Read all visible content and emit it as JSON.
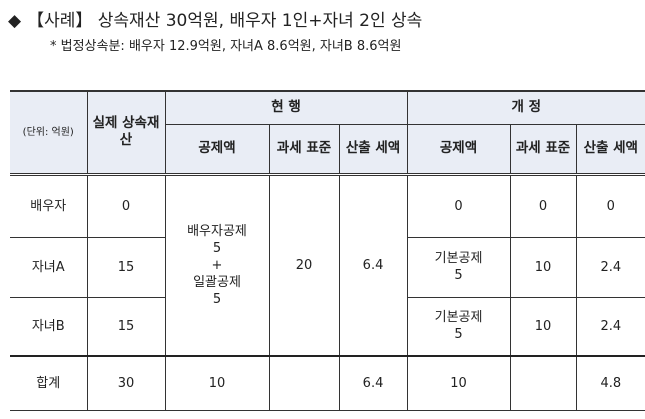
{
  "heading": {
    "bullet_icon": "diamond",
    "text": "【사례】 상속재산 30억원, 배우자 1인+자녀 2인 상속"
  },
  "note": "* 법정상속분: 배우자 12.9억원, 자녀A 8.6억원, 자녀B 8.6억원",
  "table": {
    "unit": "(단위: 억원)",
    "col_actual": "실제 상속재산",
    "group_current": "현 행",
    "group_revised": "개 정",
    "sub": {
      "deduction": "공제액",
      "tax_base": "과세 표준",
      "tax": "산출 세액"
    },
    "rows": [
      {
        "name": "배우자",
        "actual": "0",
        "rev_deduction": "0",
        "rev_base": "0",
        "rev_tax": "0"
      },
      {
        "name": "자녀A",
        "actual": "15",
        "rev_deduction": "기본공제 5",
        "rev_base": "10",
        "rev_tax": "2.4"
      },
      {
        "name": "자녀B",
        "actual": "15",
        "rev_deduction": "기본공제 5",
        "rev_base": "10",
        "rev_tax": "2.4"
      }
    ],
    "current_merged": {
      "deduction_line1": "배우자공제",
      "deduction_line2": "5",
      "deduction_line3": "+",
      "deduction_line4": "일괄공제",
      "deduction_line5": "5",
      "base": "20",
      "tax": "6.4"
    },
    "total": {
      "name": "합계",
      "actual": "30",
      "cur_deduction": "10",
      "cur_base": "",
      "cur_tax": "6.4",
      "rev_deduction": "10",
      "rev_base": "",
      "rev_tax": "4.8"
    }
  }
}
